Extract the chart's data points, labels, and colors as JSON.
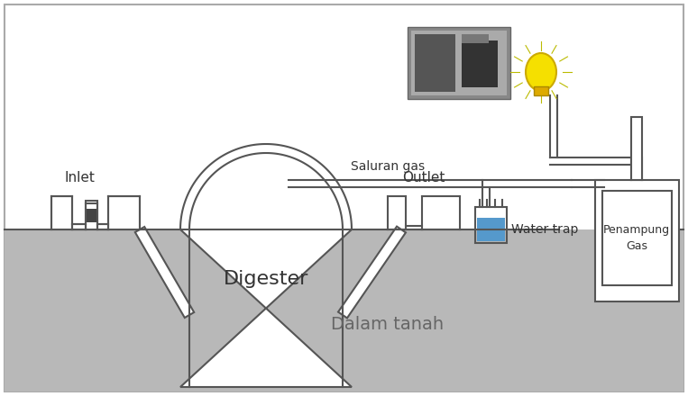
{
  "bg_color": "#ffffff",
  "ground_color": "#b8b8b8",
  "blue_water": "#5599cc",
  "line_color": "#555555",
  "lw": 1.5,
  "label_inlet": "Inlet",
  "label_outlet": "Outlet",
  "label_digester": "Digester",
  "label_dalam_tanah": "Dalam tanah",
  "label_saluran_gas": "Saluran gas",
  "label_water_trap": "Water trap",
  "label_penampung_gas": "Penampung\nGas",
  "fig_width": 7.63,
  "fig_height": 4.4
}
